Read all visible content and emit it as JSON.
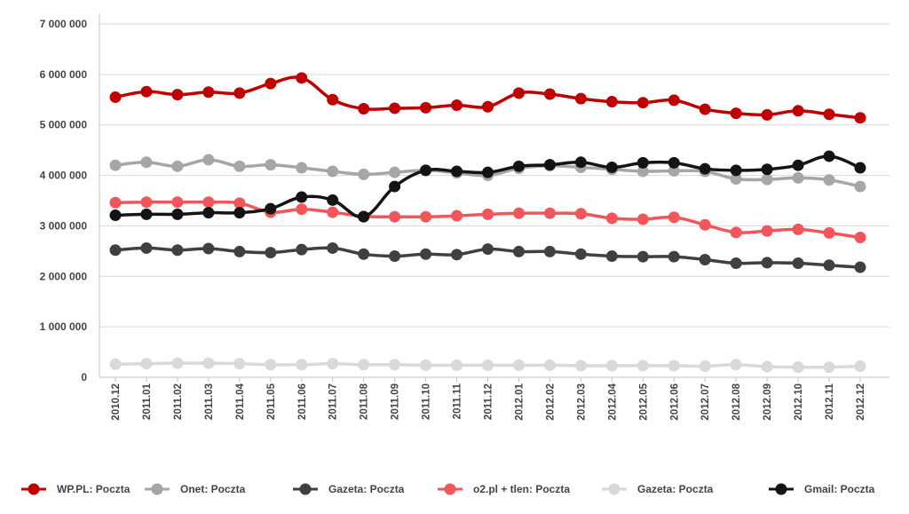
{
  "chart_data": {
    "type": "line",
    "title": "",
    "xlabel": "",
    "ylabel": "",
    "ylim": [
      0,
      7000000
    ],
    "y_ticks": [
      0,
      1000000,
      2000000,
      3000000,
      4000000,
      5000000,
      6000000,
      7000000
    ],
    "y_tick_labels": [
      "0",
      "1 000 000",
      "2 000 000",
      "3 000 000",
      "4 000 000",
      "5 000 000",
      "6 000 000",
      "7 000 000"
    ],
    "grid": true,
    "legend_placement": "bottom",
    "categories": [
      "2010.12",
      "2011.01",
      "2011.02",
      "2011.03",
      "2011.04",
      "2011.05",
      "2011.06",
      "2011.07",
      "2011.08",
      "2011.09",
      "2011.10",
      "2011.11",
      "2011.12",
      "2012.01",
      "2012.02",
      "2012.03",
      "2012.04",
      "2012.05",
      "2012.06",
      "2012.07",
      "2012.08",
      "2012.09",
      "2012.10",
      "2012.11",
      "2012.12"
    ],
    "series": [
      {
        "name": "WP.PL: Poczta",
        "color": "#c00000",
        "values": [
          5550000,
          5660000,
          5600000,
          5650000,
          5630000,
          5820000,
          5930000,
          5500000,
          5320000,
          5330000,
          5340000,
          5390000,
          5360000,
          5630000,
          5610000,
          5520000,
          5460000,
          5440000,
          5490000,
          5310000,
          5230000,
          5200000,
          5280000,
          5210000,
          5140000
        ]
      },
      {
        "name": "Onet: Poczta",
        "color": "#a6a6a6",
        "values": [
          4200000,
          4260000,
          4180000,
          4310000,
          4180000,
          4210000,
          4150000,
          4080000,
          4020000,
          4060000,
          4100000,
          4050000,
          4000000,
          4140000,
          4190000,
          4160000,
          4120000,
          4080000,
          4090000,
          4080000,
          3930000,
          3920000,
          3950000,
          3910000,
          3780000
        ]
      },
      {
        "name": "Gazeta: Poczta",
        "color": "#404040",
        "values": [
          2520000,
          2560000,
          2520000,
          2550000,
          2490000,
          2470000,
          2530000,
          2560000,
          2440000,
          2400000,
          2440000,
          2430000,
          2540000,
          2490000,
          2490000,
          2440000,
          2400000,
          2390000,
          2390000,
          2330000,
          2260000,
          2270000,
          2260000,
          2220000,
          2180000
        ]
      },
      {
        "name": "o2.pl + tlen: Poczta",
        "color": "#f2555a",
        "values": [
          3460000,
          3470000,
          3470000,
          3470000,
          3450000,
          3270000,
          3330000,
          3270000,
          3190000,
          3180000,
          3180000,
          3200000,
          3230000,
          3250000,
          3250000,
          3240000,
          3150000,
          3130000,
          3170000,
          3020000,
          2870000,
          2900000,
          2930000,
          2860000,
          2770000
        ]
      },
      {
        "name": "Gazeta: Poczta",
        "color": "#d9d9d9",
        "values": [
          260000,
          270000,
          280000,
          280000,
          270000,
          250000,
          250000,
          270000,
          250000,
          250000,
          240000,
          240000,
          240000,
          240000,
          240000,
          230000,
          230000,
          230000,
          230000,
          220000,
          250000,
          210000,
          200000,
          200000,
          220000
        ]
      },
      {
        "name": "Gmail: Poczta",
        "color": "#141414",
        "values": [
          3210000,
          3230000,
          3230000,
          3260000,
          3260000,
          3340000,
          3570000,
          3510000,
          3180000,
          3780000,
          4100000,
          4080000,
          4060000,
          4180000,
          4210000,
          4260000,
          4160000,
          4250000,
          4250000,
          4130000,
          4100000,
          4120000,
          4200000,
          4380000,
          4150000
        ]
      }
    ]
  }
}
